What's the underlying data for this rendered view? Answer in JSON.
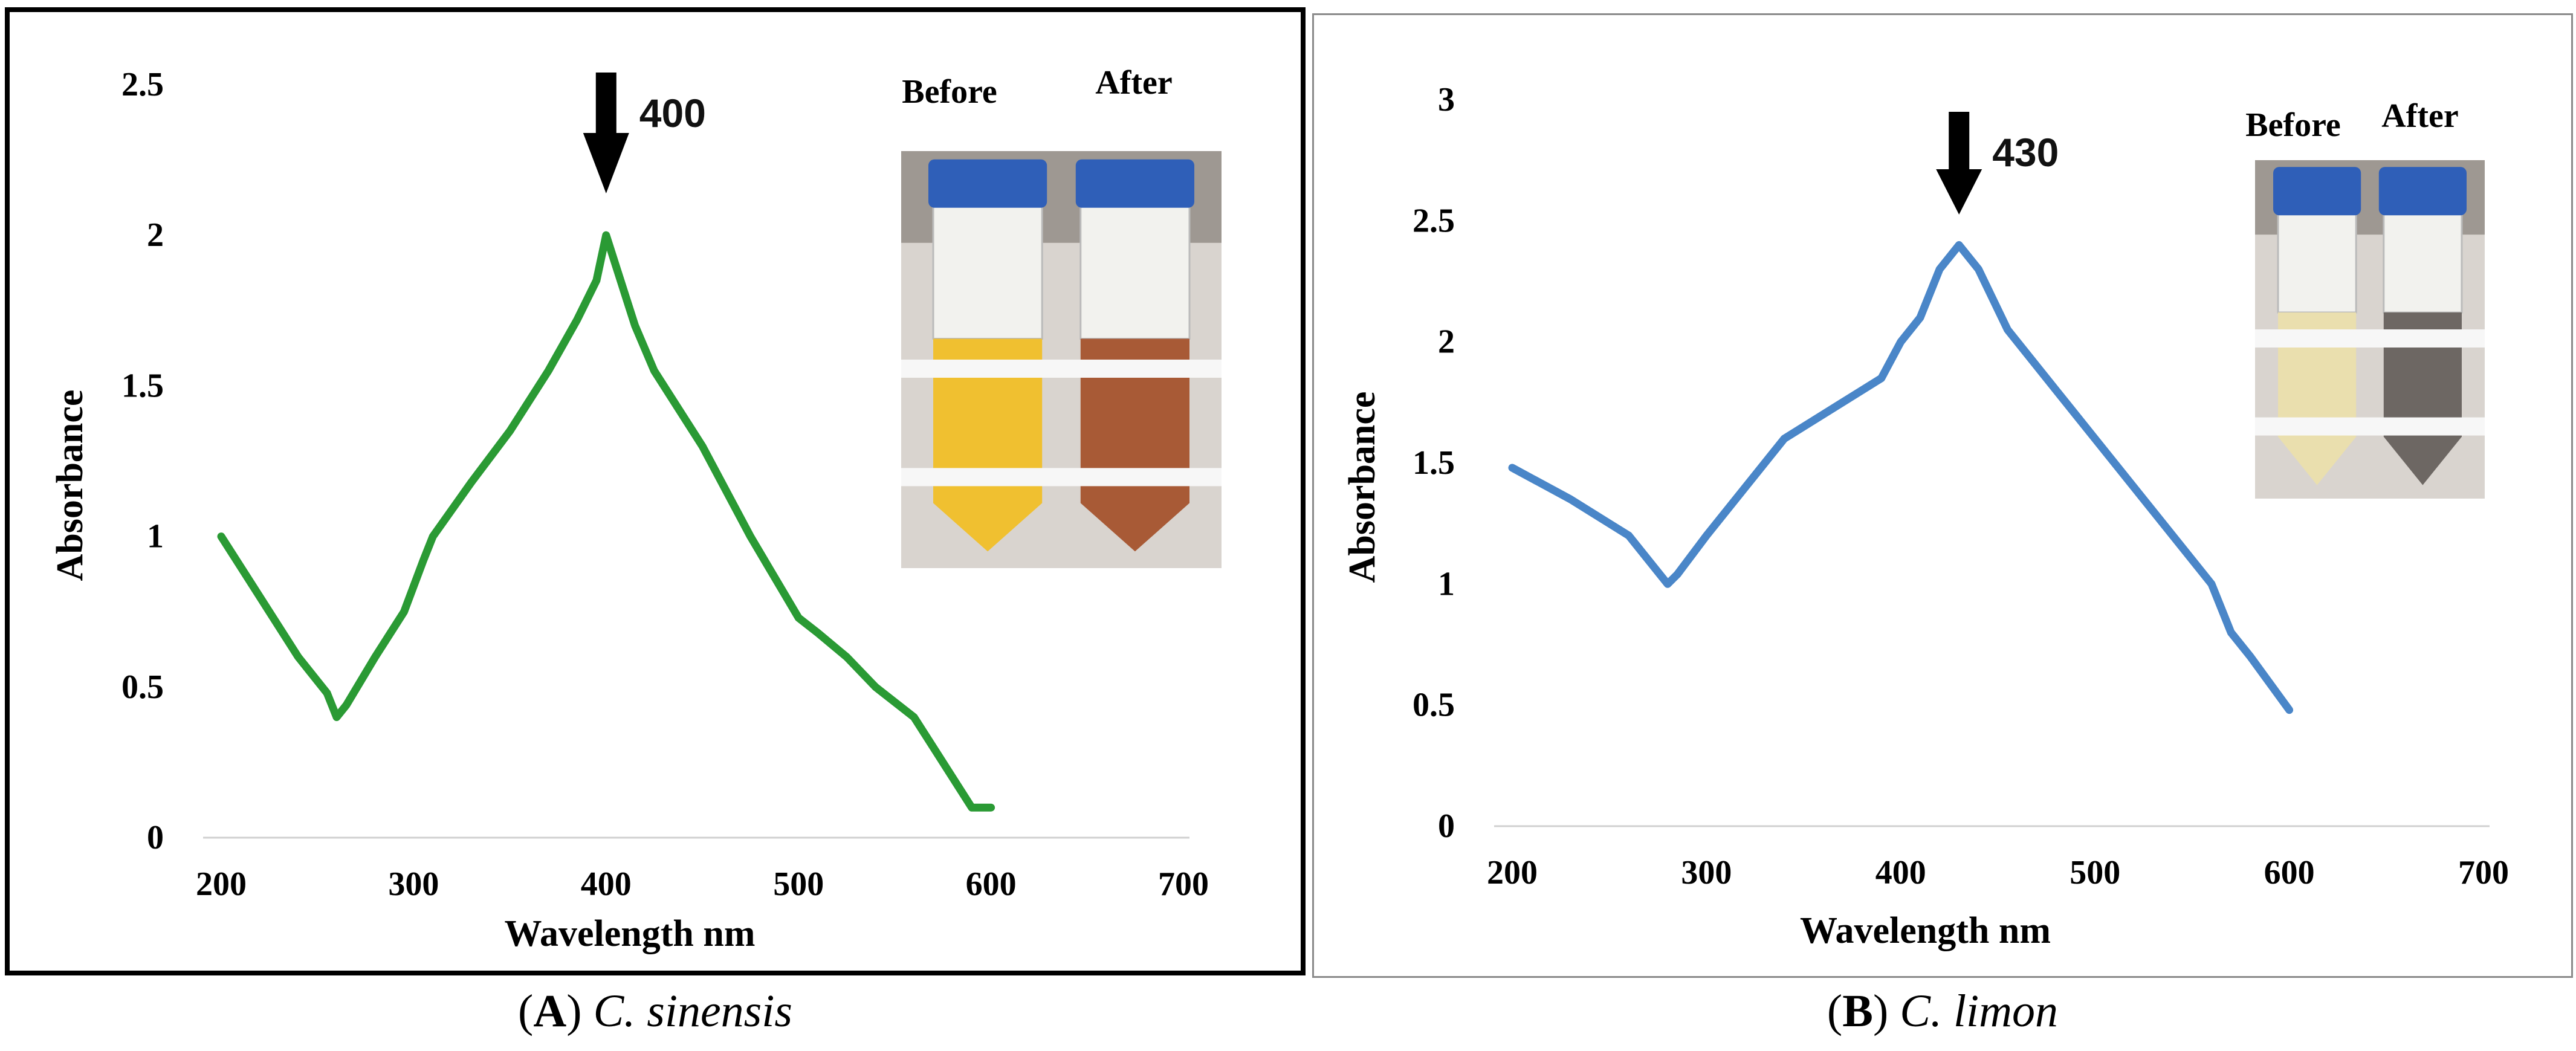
{
  "figure": {
    "captions": [
      {
        "letter": "A",
        "text": "C. sinensis"
      },
      {
        "letter": "B",
        "text": "C. limon"
      }
    ],
    "colors": {
      "series_a": "#2a9a34",
      "series_b": "#4a86c8",
      "arrow": "#000000"
    }
  },
  "chart_data": [
    {
      "type": "line",
      "title": "",
      "xlabel": "Wavelength  nm",
      "ylabel": "Absorbance",
      "xlim": [
        200,
        700
      ],
      "ylim": [
        0,
        2.5
      ],
      "x_ticks": [
        200,
        300,
        400,
        500,
        600,
        700
      ],
      "y_ticks": [
        "0",
        "0.5",
        "1",
        "1.5",
        "2",
        "2.5"
      ],
      "grid": false,
      "legend": "none",
      "series": [
        {
          "x": [
            200,
            220,
            240,
            255,
            260,
            265,
            280,
            295,
            305,
            310,
            330,
            350,
            370,
            385,
            395,
            400,
            405,
            415,
            425,
            450,
            475,
            500,
            510,
            525,
            540,
            560,
            575,
            590,
            600
          ],
          "y": [
            1.0,
            0.8,
            0.6,
            0.48,
            0.4,
            0.44,
            0.6,
            0.75,
            0.92,
            1.0,
            1.18,
            1.35,
            1.55,
            1.72,
            1.85,
            2.0,
            1.9,
            1.7,
            1.55,
            1.3,
            1.0,
            0.73,
            0.68,
            0.6,
            0.5,
            0.4,
            0.25,
            0.1,
            0.1
          ]
        }
      ],
      "annotation": {
        "text": "400",
        "x": 400
      },
      "inset": {
        "labels": [
          "Before",
          "After"
        ],
        "solution_colors": [
          "#f0c030",
          "#a85a36"
        ]
      }
    },
    {
      "type": "line",
      "title": "",
      "xlabel": "Wavelength  nm",
      "ylabel": "Absorbance",
      "xlim": [
        200,
        700
      ],
      "ylim": [
        0,
        3
      ],
      "x_ticks": [
        200,
        300,
        400,
        500,
        600,
        700
      ],
      "y_ticks": [
        "0",
        "0.5",
        "1",
        "1.5",
        "2",
        "2.5",
        "3"
      ],
      "grid": false,
      "legend": "none",
      "series": [
        {
          "x": [
            200,
            230,
            260,
            275,
            280,
            285,
            300,
            320,
            340,
            370,
            390,
            400,
            410,
            420,
            430,
            440,
            455,
            480,
            500,
            530,
            555,
            560,
            570,
            580,
            600
          ],
          "y": [
            1.48,
            1.35,
            1.2,
            1.05,
            1.0,
            1.04,
            1.2,
            1.4,
            1.6,
            1.75,
            1.85,
            2.0,
            2.1,
            2.3,
            2.4,
            2.3,
            2.05,
            1.8,
            1.6,
            1.3,
            1.05,
            1.0,
            0.8,
            0.7,
            0.48
          ]
        }
      ],
      "annotation": {
        "text": "430",
        "x": 430
      },
      "inset": {
        "labels": [
          "Before",
          "After"
        ],
        "solution_colors": [
          "#eadfae",
          "#6d6763"
        ]
      }
    }
  ]
}
